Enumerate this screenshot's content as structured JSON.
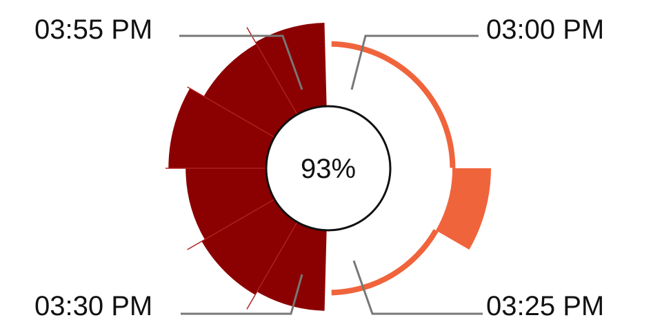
{
  "chart_data": {
    "type": "polar-bar",
    "center_label": "93%",
    "colors": {
      "first_half": "#f0643c",
      "second_half": "#8b0000",
      "separator": "#b02020",
      "center_ring": "#111111"
    },
    "segments": [
      {
        "half": "first",
        "start_min": 0,
        "end_min": 15,
        "value": 0.4
      },
      {
        "half": "first",
        "start_min": 15,
        "end_min": 20,
        "value": 1.0
      },
      {
        "half": "first",
        "start_min": 20,
        "end_min": 30,
        "value": 0.4
      },
      {
        "half": "second",
        "start_min": 30,
        "end_min": 35,
        "value": 0.66
      },
      {
        "half": "second",
        "start_min": 35,
        "end_min": 40,
        "value": 0.72
      },
      {
        "half": "second",
        "start_min": 40,
        "end_min": 45,
        "value": 0.66
      },
      {
        "half": "second",
        "start_min": 45,
        "end_min": 50,
        "value": 0.95
      },
      {
        "half": "second",
        "start_min": 50,
        "end_min": 55,
        "value": 0.68
      },
      {
        "half": "second",
        "start_min": 55,
        "end_min": 60,
        "value": 0.71
      }
    ],
    "labels": [
      {
        "id": "tl",
        "text": "03:55 PM"
      },
      {
        "id": "tr",
        "text": "03:00 PM"
      },
      {
        "id": "bl",
        "text": "03:30 PM"
      },
      {
        "id": "br",
        "text": "03:25 PM"
      }
    ]
  }
}
